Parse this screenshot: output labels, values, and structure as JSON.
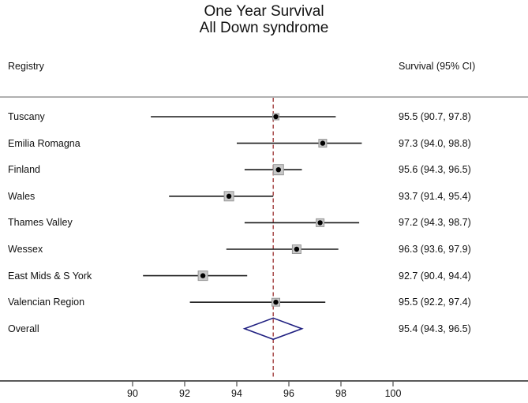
{
  "title": {
    "line1": "One Year Survival",
    "line2": "All Down syndrome"
  },
  "columns": {
    "left_header": "Registry",
    "right_header": "Survival (95% CI)"
  },
  "colors": {
    "ci_line": "#1A1A1A",
    "marker_dot": "#000000",
    "marker_box": "#C8C8C8",
    "marker_box_border": "#969696",
    "reference_line": "#A03C3C",
    "diamond": "#1F1F80",
    "axis": "#5A5A5A",
    "separator": "#B0B0B0",
    "text": "#111111"
  },
  "chart_data": {
    "type": "forest",
    "title": "One Year Survival",
    "subtitle": "All Down syndrome",
    "xlabel": "",
    "ylabel": "",
    "x_ticks": [
      90,
      92,
      94,
      96,
      98,
      100
    ],
    "xlim": [
      85,
      105
    ],
    "grid": false,
    "reference_line": {
      "value": 95.4,
      "style": "dashed"
    },
    "rows": [
      {
        "label": "Tuscany",
        "estimate": 95.5,
        "ci_low": 90.7,
        "ci_high": 97.8,
        "display": "95.5 (90.7, 97.8)",
        "marker_size": 8
      },
      {
        "label": "Emilia Romagna",
        "estimate": 97.3,
        "ci_low": 94.0,
        "ci_high": 98.8,
        "display": "97.3 (94.0, 98.8)",
        "marker_size": 10
      },
      {
        "label": "Finland",
        "estimate": 95.6,
        "ci_low": 94.3,
        "ci_high": 96.5,
        "display": "95.6 (94.3, 96.5)",
        "marker_size": 13
      },
      {
        "label": "Wales",
        "estimate": 93.7,
        "ci_low": 91.4,
        "ci_high": 95.4,
        "display": "93.7 (91.4, 95.4)",
        "marker_size": 12
      },
      {
        "label": "Thames Valley",
        "estimate": 97.2,
        "ci_low": 94.3,
        "ci_high": 98.7,
        "display": "97.2 (94.3, 98.7)",
        "marker_size": 10
      },
      {
        "label": "Wessex",
        "estimate": 96.3,
        "ci_low": 93.6,
        "ci_high": 97.9,
        "display": "96.3 (93.6, 97.9)",
        "marker_size": 11
      },
      {
        "label": "East Mids & S York",
        "estimate": 92.7,
        "ci_low": 90.4,
        "ci_high": 94.4,
        "display": "92.7 (90.4, 94.4)",
        "marker_size": 12
      },
      {
        "label": "Valencian Region",
        "estimate": 95.5,
        "ci_low": 92.2,
        "ci_high": 97.4,
        "display": "95.5 (92.2, 97.4)",
        "marker_size": 10
      }
    ],
    "overall": {
      "label": "Overall",
      "estimate": 95.4,
      "ci_low": 94.3,
      "ci_high": 96.5,
      "display": "95.4 (94.3, 96.5)"
    }
  }
}
